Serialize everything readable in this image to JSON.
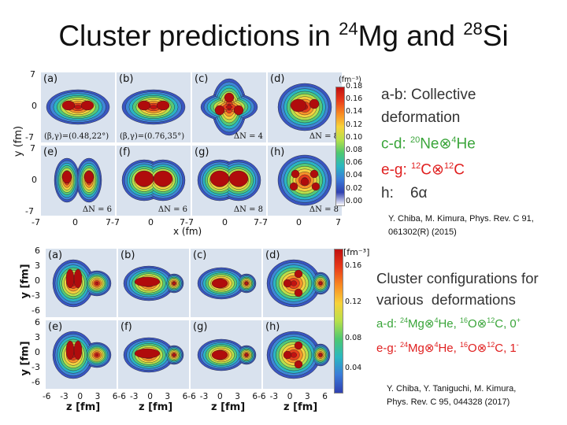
{
  "title": {
    "prefix": "Cluster predictions in ",
    "sup1": "24",
    "mid": "Mg and ",
    "sup2": "28",
    "suffix": "Si"
  },
  "fig1": {
    "panel_labels": [
      "(a)",
      "(b)",
      "(c)",
      "(d)",
      "(e)",
      "(f)",
      "(g)",
      "(h)"
    ],
    "notes": {
      "a": "(β,γ)=(0.48,22°)",
      "b": "(β,γ)=(0.76,35°)",
      "c": "ΔN = 4",
      "d": "ΔN = 8",
      "e": "ΔN = 6",
      "f": "ΔN = 6",
      "g": "ΔN = 8",
      "h": "ΔN = 8"
    },
    "y_ticks_top": [
      "7",
      "0",
      "-7"
    ],
    "y_ticks_bottom": [
      "7",
      "0",
      "-7"
    ],
    "x_ticks": [
      "-7",
      "0",
      "7-7",
      "0",
      "7-7",
      "0",
      "7-7",
      "0",
      "7"
    ],
    "ylabel": "y (fm)",
    "xlabel": "x (fm)",
    "cbar_unit": "(fm⁻³)",
    "cbar_ticks": [
      "0.18",
      "0.16",
      "0.14",
      "0.12",
      "0.10",
      "0.08",
      "0.06",
      "0.04",
      "0.02",
      "0.00"
    ]
  },
  "side1": {
    "line1": "a-b: Collective",
    "line2": "deformation",
    "line3_prefix": "c-d: ",
    "line3_sup1": "20",
    "line3_a": "Ne⊗",
    "line3_sup2": "4",
    "line3_b": "He",
    "line4_prefix": "e-g: ",
    "line4_sup1": "12",
    "line4_a": "C⊗",
    "line4_sup2": "12",
    "line4_b": "C",
    "line5": "h:    6α",
    "ref_line1": "Y. Chiba, M. Kimura, Phys. Rev. C 91,",
    "ref_line2": "061302(R) (2015)"
  },
  "fig2": {
    "panel_labels": [
      "(a)",
      "(b)",
      "(c)",
      "(d)",
      "(e)",
      "(f)",
      "(g)",
      "(h)"
    ],
    "y_ticks_top": [
      "6",
      "3",
      "0",
      "-3",
      "-6"
    ],
    "y_ticks_bottom": [
      "6",
      "3",
      "0",
      "-3",
      "-6"
    ],
    "x_ticks": [
      "-6",
      "-3",
      "0",
      "3",
      "6-6",
      "-3",
      "0",
      "3",
      "6-6",
      "-3",
      "0",
      "3",
      "6-6",
      "-3",
      "0",
      "3",
      "6"
    ],
    "ylabel_top": "y [fm]",
    "ylabel_bottom": "y [fm]",
    "xlabels": [
      "z [fm]",
      "z [fm]",
      "z [fm]",
      "z [fm]"
    ],
    "cbar_unit": "[fm⁻³]",
    "cbar_ticks": [
      "0.16",
      "0.12",
      "0.08",
      "0.04"
    ]
  },
  "side2": {
    "line1": "Cluster configurations for",
    "line2": "various  deformations",
    "line3_prefix": "a-d: ",
    "line3_s1": "24",
    "line3_t1": "Mg⊗",
    "line3_s2": "4",
    "line3_t2": "He, ",
    "line3_s3": "16",
    "line3_t3": "O⊗",
    "line3_s4": "12",
    "line3_t4": "C, 0",
    "line3_s5": "+",
    "line4_prefix": "e-g: ",
    "line4_s1": "24",
    "line4_t1": "Mg⊗",
    "line4_s2": "4",
    "line4_t2": "He, ",
    "line4_s3": "16",
    "line4_t3": "O⊗",
    "line4_s4": "12",
    "line4_t4": "C, 1",
    "line4_s5": "-",
    "ref_line1": "Y. Chiba, Y. Taniguchi, M. Kimura,",
    "ref_line2": "Phys. Rev. C 95, 044328 (2017)"
  },
  "colors": {
    "red": "#e02020",
    "green": "#3aa53a",
    "text": "#333333"
  }
}
